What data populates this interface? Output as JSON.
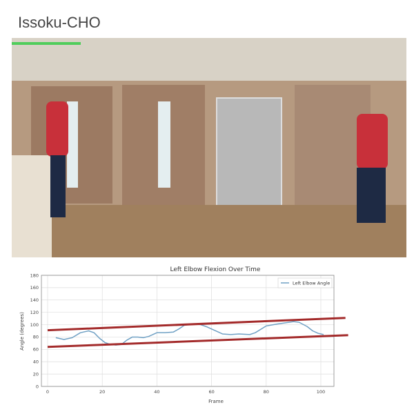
{
  "app_title": "Issoku-CHO",
  "video": {
    "overlay_text_color": "#2ecc40"
  },
  "chart_data": {
    "type": "line",
    "title": "Left Elbow Flexion Over Time",
    "xlabel": "Frame",
    "ylabel": "Angle (degrees)",
    "xlim": [
      -3,
      105
    ],
    "ylim": [
      0,
      180
    ],
    "xticks": [
      0,
      20,
      40,
      60,
      80,
      100
    ],
    "yticks": [
      0,
      20,
      40,
      60,
      80,
      100,
      120,
      140,
      160,
      180
    ],
    "grid": true,
    "legend_position": "top-right",
    "series": [
      {
        "name": "Left Elbow Angle",
        "color": "#6fa0c4",
        "x": [
          3,
          6,
          9,
          12,
          15,
          17,
          19,
          21,
          23,
          25,
          27,
          29,
          31,
          33,
          35,
          37,
          40,
          43,
          46,
          48,
          50,
          53,
          56,
          58,
          61,
          64,
          67,
          70,
          74,
          76,
          80,
          84,
          87,
          90,
          92,
          95,
          97,
          99,
          101
        ],
        "y": [
          79,
          76,
          79,
          87,
          90,
          87,
          78,
          71,
          68,
          67,
          68,
          75,
          80,
          80,
          79,
          81,
          87,
          87,
          88,
          93,
          99,
          101,
          100,
          97,
          91,
          85,
          84,
          85,
          84,
          87,
          98,
          101,
          103,
          105,
          104,
          97,
          90,
          86,
          84
        ]
      }
    ],
    "annotations": [
      {
        "type": "line",
        "color": "#a32a2a",
        "from": [
          0,
          91
        ],
        "to": [
          109,
          111
        ]
      },
      {
        "type": "line",
        "color": "#a32a2a",
        "from": [
          0,
          64
        ],
        "to": [
          110,
          83
        ]
      }
    ]
  }
}
